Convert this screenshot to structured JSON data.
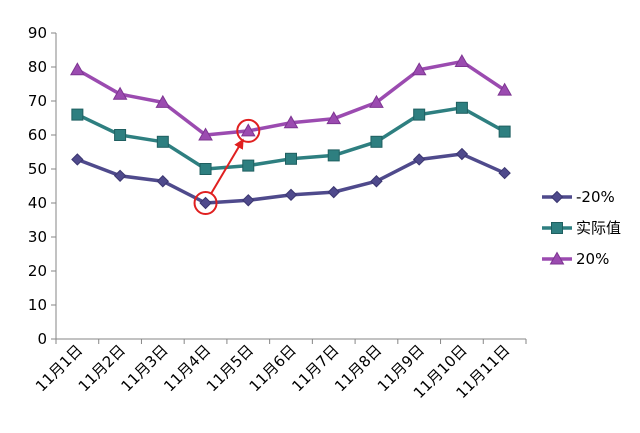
{
  "chart_data": {
    "type": "line",
    "title": "",
    "xlabel": "",
    "ylabel": "",
    "ylim": [
      0,
      90
    ],
    "yticks": [
      0,
      10,
      20,
      30,
      40,
      50,
      60,
      70,
      80,
      90
    ],
    "grid": false,
    "legend": "right",
    "categories": [
      "11月1日",
      "11月2日",
      "11月3日",
      "11月4日",
      "11月5日",
      "11月6日",
      "11月7日",
      "11月8日",
      "11月9日",
      "11月10日",
      "11月11日"
    ],
    "series": [
      {
        "name": "-20%",
        "marker": "diamond",
        "color": "#4f4a8c",
        "values": [
          52.8,
          48,
          46.4,
          40,
          40.8,
          42.4,
          43.2,
          46.4,
          52.8,
          54.4,
          48.8
        ]
      },
      {
        "name": "实际值",
        "marker": "square",
        "color": "#2e7f80",
        "values": [
          66,
          60,
          58,
          50,
          51,
          53,
          54,
          58,
          66,
          68,
          61
        ]
      },
      {
        "name": "20%",
        "marker": "triangle",
        "color": "#9b4bb0",
        "values": [
          79.2,
          72,
          69.6,
          60,
          61.2,
          63.6,
          64.8,
          69.6,
          79.2,
          81.6,
          73.2
        ]
      }
    ],
    "annotations": [
      {
        "type": "arrow",
        "color": "#e02020",
        "from": {
          "category": "11月4日",
          "value": 40
        },
        "to": {
          "category": "11月5日",
          "value": 61.2
        },
        "circled": true
      }
    ]
  }
}
